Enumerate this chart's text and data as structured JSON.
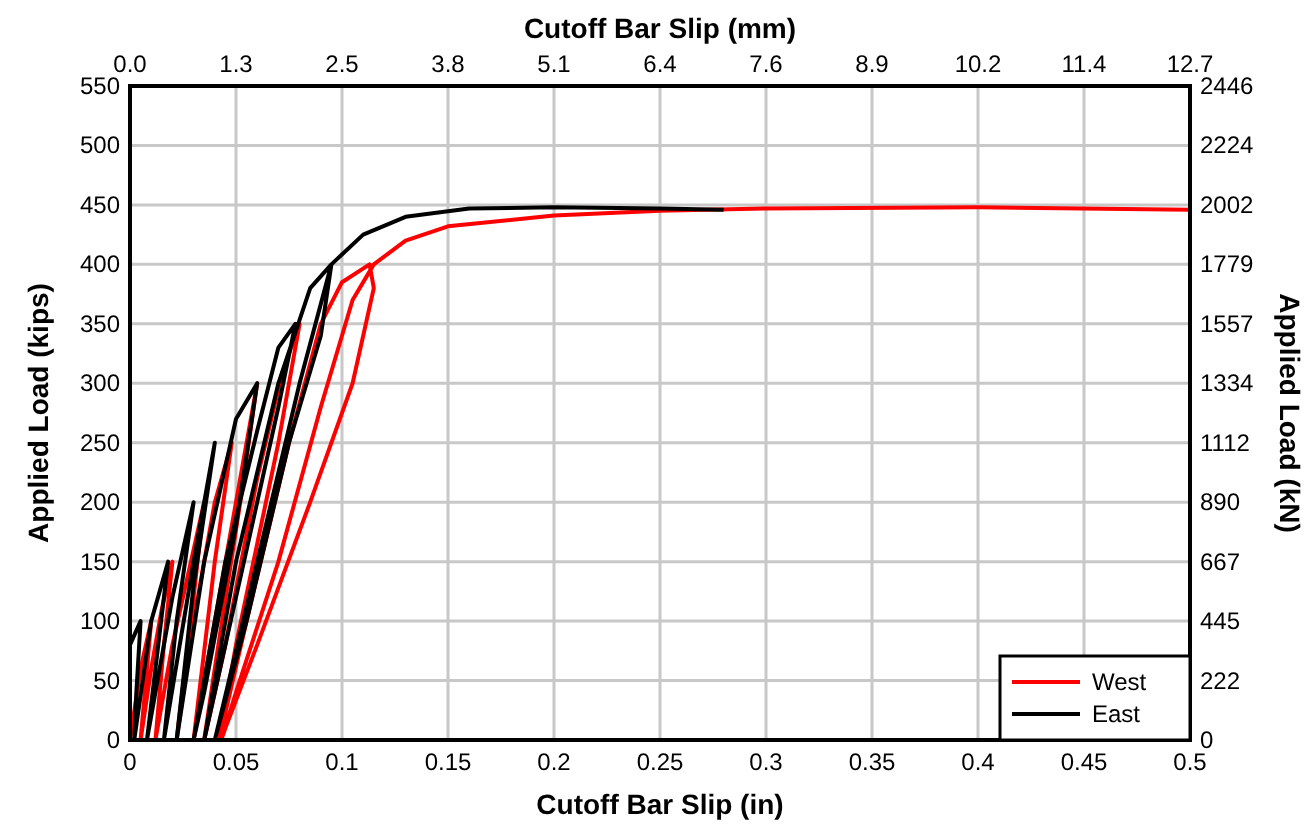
{
  "chart_data": {
    "type": "line",
    "xlabel": "Cutoff Bar Slip (in)",
    "ylabel": "Applied Load (kips)",
    "x2label": "Cutoff Bar Slip (mm)",
    "y2label": "Applied Load (kN)",
    "xlim": [
      0,
      0.5
    ],
    "xticks": [
      0,
      0.05,
      0.1,
      0.15,
      0.2,
      0.25,
      0.3,
      0.35,
      0.4,
      0.45,
      0.5
    ],
    "ylim": [
      0,
      550
    ],
    "yticks": [
      0,
      50,
      100,
      150,
      200,
      250,
      300,
      350,
      400,
      450,
      500,
      550
    ],
    "x2lim": [
      0,
      12.7
    ],
    "x2ticks": [
      {
        "value": 0,
        "label": "0.0"
      },
      {
        "value": 1.27,
        "label": "1.3"
      },
      {
        "value": 2.54,
        "label": "2.5"
      },
      {
        "value": 3.81,
        "label": "3.8"
      },
      {
        "value": 5.08,
        "label": "5.1"
      },
      {
        "value": 6.35,
        "label": "6.4"
      },
      {
        "value": 7.62,
        "label": "7.6"
      },
      {
        "value": 8.89,
        "label": "8.9"
      },
      {
        "value": 10.16,
        "label": "10.2"
      },
      {
        "value": 11.43,
        "label": "11.4"
      },
      {
        "value": 12.7,
        "label": "12.7"
      }
    ],
    "y2lim": [
      0,
      2446.5
    ],
    "y2ticks": [
      0,
      {
        "value": 222.4,
        "label": "222"
      },
      {
        "value": 444.8,
        "label": "445"
      },
      {
        "value": 667.2,
        "label": "667"
      },
      {
        "value": 889.6,
        "label": "890"
      },
      {
        "value": 1112.1,
        "label": "1112"
      },
      {
        "value": 1334.5,
        "label": "1334"
      },
      {
        "value": 1556.9,
        "label": "1557"
      },
      {
        "value": 1779.3,
        "label": "1779"
      },
      {
        "value": 2001.7,
        "label": "2002"
      },
      {
        "value": 2224.1,
        "label": "2224"
      },
      {
        "value": 2446.5,
        "label": "2446"
      }
    ],
    "grid": true,
    "legend": "bottom right",
    "marker": "none",
    "line_style": "solid",
    "series": [
      {
        "name": "West",
        "color": "#ff0000",
        "x": [
          0,
          0.005,
          0.01,
          0.008,
          0.005,
          0.01,
          0.015,
          0.02,
          0.016,
          0.012,
          0.02,
          0.03,
          0.035,
          0.03,
          0.022,
          0.03,
          0.04,
          0.048,
          0.04,
          0.03,
          0.038,
          0.05,
          0.06,
          0.052,
          0.04,
          0.035,
          0.045,
          0.06,
          0.072,
          0.08,
          0.07,
          0.05,
          0.042,
          0.055,
          0.075,
          0.09,
          0.1,
          0.113,
          0.115,
          0.105,
          0.085,
          0.06,
          0.045,
          0.043,
          0.05,
          0.07,
          0.09,
          0.105,
          0.115,
          0.13,
          0.15,
          0.2,
          0.25,
          0.3,
          0.4,
          0.5
        ],
        "values": [
          0,
          60,
          100,
          60,
          0,
          60,
          110,
          150,
          80,
          0,
          80,
          160,
          200,
          120,
          0,
          100,
          200,
          250,
          150,
          0,
          80,
          200,
          300,
          200,
          60,
          0,
          80,
          220,
          310,
          350,
          250,
          80,
          0,
          100,
          250,
          350,
          385,
          400,
          380,
          300,
          200,
          80,
          10,
          0,
          40,
          150,
          280,
          370,
          400,
          420,
          432,
          441,
          445,
          447,
          448,
          446
        ]
      },
      {
        "name": "East",
        "color": "#000000",
        "x": [
          0,
          0,
          0.005,
          0.003,
          0.002,
          0.01,
          0.018,
          0.012,
          0.008,
          0.02,
          0.03,
          0.022,
          0.016,
          0.03,
          0.04,
          0.03,
          0.022,
          0.035,
          0.05,
          0.06,
          0.05,
          0.035,
          0.03,
          0.045,
          0.06,
          0.07,
          0.078,
          0.07,
          0.05,
          0.035,
          0.05,
          0.07,
          0.085,
          0.095,
          0.09,
          0.075,
          0.055,
          0.04,
          0.06,
          0.08,
          0.095,
          0.11,
          0.13,
          0.16,
          0.2,
          0.25,
          0.28
        ],
        "values": [
          0,
          80,
          100,
          40,
          0,
          100,
          150,
          60,
          0,
          120,
          200,
          100,
          0,
          150,
          250,
          130,
          0,
          150,
          270,
          300,
          180,
          40,
          0,
          150,
          260,
          330,
          350,
          280,
          120,
          0,
          150,
          300,
          380,
          400,
          340,
          250,
          100,
          0,
          150,
          300,
          400,
          425,
          440,
          447,
          448,
          447,
          446
        ]
      }
    ]
  }
}
